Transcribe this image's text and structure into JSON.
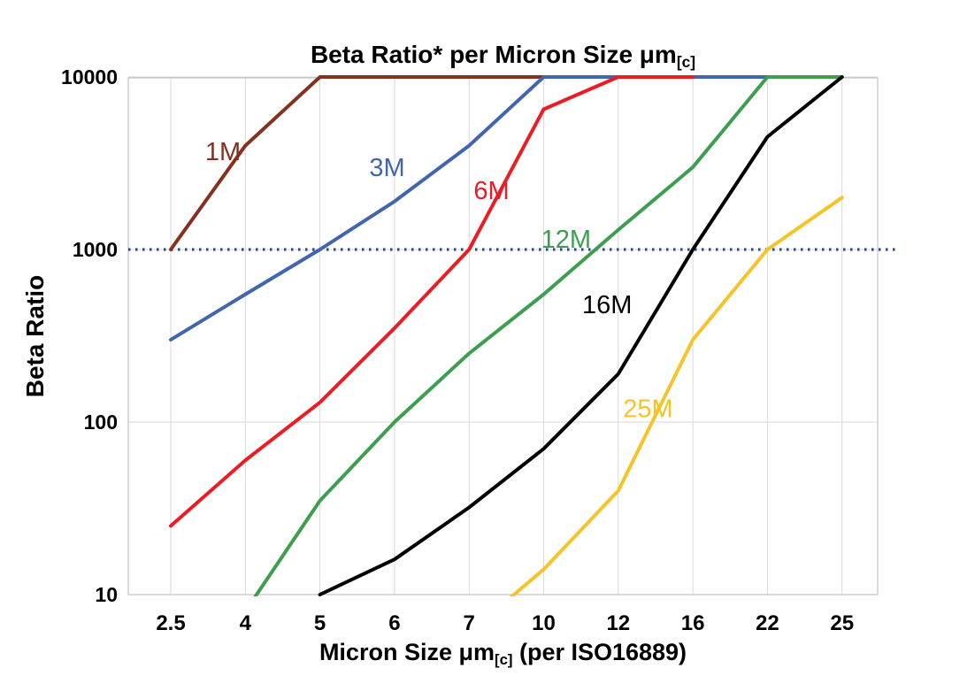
{
  "chart_data": {
    "type": "line",
    "title_main": "Beta Ratio* per Micron Size μm",
    "title_sub": "[c]",
    "ylabel": "Beta Ratio",
    "xlabel_pre": "Micron Size μm",
    "xlabel_sub": "[c]",
    "xlabel_post": " (per ISO16889)",
    "x_scale": "category",
    "y_scale": "log",
    "ylim": [
      10,
      10000
    ],
    "y_ticks": [
      "10",
      "100",
      "1000",
      "10000"
    ],
    "categories": [
      "2.5",
      "4",
      "5",
      "6",
      "7",
      "10",
      "12",
      "16",
      "22",
      "25"
    ],
    "grid": {
      "color": "#d9d9d9",
      "vertical": true,
      "horizontal": true
    },
    "reference_line": {
      "value": 1000,
      "color": "#2B4A9B",
      "style": "dotted"
    },
    "series": [
      {
        "name": "1M",
        "color": "#853020",
        "values": [
          1000,
          4000,
          10000,
          10000,
          10000,
          10000,
          null,
          null,
          null,
          null
        ],
        "label": {
          "xi": 0.7,
          "v": 3700
        }
      },
      {
        "name": "3M",
        "color": "#4365B0",
        "values": [
          300,
          550,
          1000,
          1900,
          4000,
          10000,
          10000,
          10000,
          10000,
          null
        ],
        "label": {
          "xi": 2.9,
          "v": 3000
        }
      },
      {
        "name": "6M",
        "color": "#EC1C24",
        "values": [
          25,
          60,
          130,
          350,
          1000,
          6500,
          10000,
          10000,
          null,
          null
        ],
        "label": {
          "xi": 4.3,
          "v": 2200
        }
      },
      {
        "name": "12M",
        "color": "#3D9E50",
        "values": [
          null,
          8,
          35,
          100,
          250,
          550,
          1300,
          3000,
          10000,
          10000
        ],
        "label": {
          "xi": 5.3,
          "v": 1150
        }
      },
      {
        "name": "16M",
        "color": "#000000",
        "values": [
          null,
          null,
          10,
          16,
          32,
          70,
          190,
          1000,
          4500,
          10000
        ],
        "label": {
          "xi": 5.85,
          "v": 480
        }
      },
      {
        "name": "25M",
        "color": "#F5C429",
        "values": [
          null,
          null,
          null,
          null,
          6,
          14,
          40,
          300,
          1000,
          2000
        ],
        "label": {
          "xi": 6.4,
          "v": 120
        }
      }
    ]
  }
}
